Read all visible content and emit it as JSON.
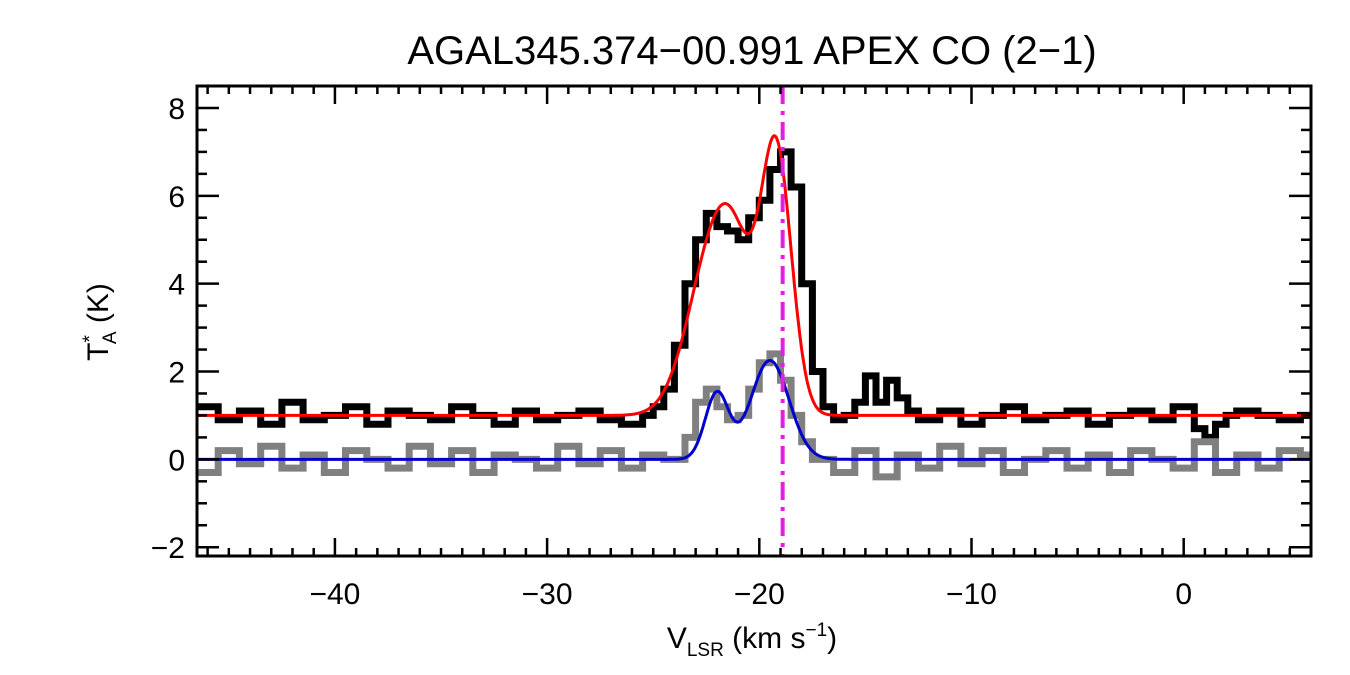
{
  "chart_data": {
    "type": "line",
    "title": "AGAL345.374−00.991   APEX CO (2−1)",
    "xlabel": {
      "main": "V",
      "sub": "LSR",
      "rest": " (km s",
      "sup": "−1",
      "close": ")"
    },
    "ylabel": {
      "main": "T",
      "sup": "*",
      "sub": "A",
      "rest": " (K)"
    },
    "xlim": [
      -46.5,
      6.0
    ],
    "ylim": [
      -2.2,
      8.5
    ],
    "x_ticks": [
      -40,
      -30,
      -20,
      -10,
      0
    ],
    "x_tick_labels": [
      "−40",
      "−30",
      "−20",
      "−10",
      "0"
    ],
    "y_ticks": [
      -2,
      0,
      2,
      4,
      6,
      8
    ],
    "y_tick_labels": [
      "−2",
      "0",
      "2",
      "4",
      "6",
      "8"
    ],
    "vline": {
      "x": -18.9,
      "color": "#e020e0",
      "style": "dash-dot"
    },
    "grid": false,
    "colors": {
      "observed_offset": "#000000",
      "observed": "#808080",
      "fit_offset": "#ff0000",
      "fit": "#0000cc"
    },
    "series": [
      {
        "style": "step",
        "color": "#000000",
        "x": [
          -46.5,
          -45.5,
          -44.5,
          -43.5,
          -42.5,
          -41.5,
          -40.5,
          -39.5,
          -38.5,
          -37.5,
          -36.5,
          -35.5,
          -34.5,
          -33.5,
          -32.5,
          -31.5,
          -30.5,
          -29.5,
          -28.5,
          -27.5,
          -26.5,
          -25.5,
          -25.0,
          -24.5,
          -24.0,
          -23.5,
          -23.0,
          -22.5,
          -22.0,
          -21.5,
          -21.0,
          -20.5,
          -20.0,
          -19.5,
          -19.0,
          -18.5,
          -18.0,
          -17.5,
          -17.0,
          -16.5,
          -16.0,
          -15.5,
          -15.0,
          -14.5,
          -14.0,
          -13.5,
          -13.0,
          -12.5,
          -11.5,
          -10.5,
          -9.5,
          -8.5,
          -7.5,
          -6.5,
          -5.5,
          -4.5,
          -3.5,
          -2.5,
          -1.5,
          -0.5,
          0.5,
          1.0,
          1.5,
          2.0,
          2.5,
          3.5,
          4.5,
          5.5
        ],
        "y": [
          1.2,
          0.9,
          1.1,
          0.8,
          1.3,
          0.9,
          1.0,
          1.2,
          0.8,
          1.1,
          1.0,
          0.9,
          1.2,
          1.0,
          0.8,
          1.1,
          0.9,
          1.0,
          1.1,
          0.9,
          0.8,
          1.0,
          1.2,
          1.6,
          2.6,
          4.0,
          5.0,
          5.6,
          5.3,
          5.2,
          5.0,
          5.5,
          5.9,
          6.6,
          7.0,
          6.2,
          4.0,
          2.0,
          1.2,
          0.9,
          1.0,
          1.3,
          1.9,
          1.3,
          1.8,
          1.4,
          1.1,
          0.9,
          1.1,
          0.8,
          1.0,
          1.2,
          0.9,
          1.0,
          1.1,
          0.8,
          1.0,
          1.1,
          0.9,
          1.2,
          0.7,
          0.5,
          0.8,
          1.0,
          1.1,
          1.0,
          0.9,
          1.0
        ]
      },
      {
        "style": "step",
        "color": "#808080",
        "x": [
          -46.5,
          -45.5,
          -44.5,
          -43.5,
          -42.5,
          -41.5,
          -40.5,
          -39.5,
          -38.5,
          -37.5,
          -36.5,
          -35.5,
          -34.5,
          -33.5,
          -32.5,
          -31.5,
          -30.5,
          -29.5,
          -28.5,
          -27.5,
          -26.5,
          -25.5,
          -24.5,
          -23.5,
          -23.0,
          -22.5,
          -22.0,
          -21.5,
          -21.0,
          -20.5,
          -20.0,
          -19.5,
          -19.0,
          -18.5,
          -18.0,
          -17.5,
          -16.5,
          -15.5,
          -14.5,
          -13.5,
          -12.5,
          -11.5,
          -10.5,
          -9.5,
          -8.5,
          -7.5,
          -6.5,
          -5.5,
          -4.5,
          -3.5,
          -2.5,
          -1.5,
          -0.5,
          0.5,
          1.5,
          2.5,
          3.5,
          4.5,
          5.5
        ],
        "y": [
          -0.3,
          0.2,
          -0.1,
          0.3,
          -0.2,
          0.1,
          -0.3,
          0.2,
          0.0,
          -0.2,
          0.3,
          -0.1,
          0.2,
          -0.3,
          0.1,
          0.0,
          -0.2,
          0.3,
          -0.1,
          0.2,
          -0.2,
          0.1,
          0.0,
          0.5,
          1.3,
          1.6,
          1.2,
          0.9,
          1.0,
          1.6,
          2.2,
          2.4,
          1.8,
          1.0,
          0.4,
          0.0,
          -0.3,
          0.2,
          -0.4,
          0.1,
          -0.2,
          0.3,
          -0.1,
          0.2,
          -0.3,
          0.0,
          0.2,
          -0.2,
          0.1,
          -0.3,
          0.2,
          0.0,
          -0.2,
          0.4,
          -0.3,
          0.1,
          -0.2,
          0.2,
          0.1
        ]
      },
      {
        "style": "line",
        "color": "#ff0000",
        "baseline": 1.0,
        "components": [
          {
            "center": -22.0,
            "sigma": 1.25,
            "amplitude": 4.1
          },
          {
            "center": -19.2,
            "sigma": 0.72,
            "amplitude": 5.9
          },
          {
            "center": -21.0,
            "sigma": 0.8,
            "amplitude": 1.2
          }
        ],
        "x_range": [
          -46.5,
          6.0
        ]
      },
      {
        "style": "line",
        "color": "#0000cc",
        "baseline": 0.0,
        "components": [
          {
            "center": -22.0,
            "sigma": 0.55,
            "amplitude": 1.5
          },
          {
            "center": -19.5,
            "sigma": 0.9,
            "amplitude": 2.25
          }
        ],
        "x_range": [
          -46.5,
          6.0
        ]
      }
    ]
  }
}
